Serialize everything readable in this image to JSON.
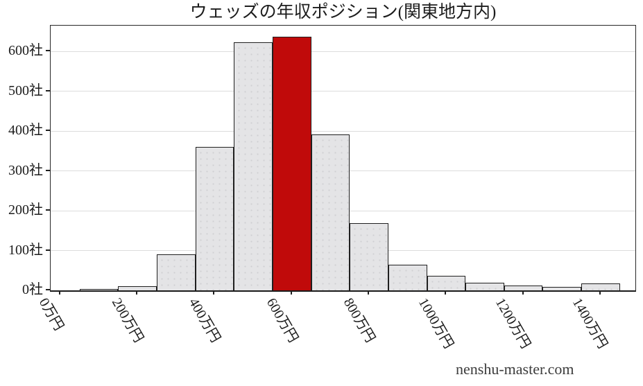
{
  "header": {
    "title": "ウェッズの年収ポジション(関東地方内)"
  },
  "footer": {
    "watermark": "nenshu-master.com"
  },
  "chart_data": {
    "type": "bar",
    "title": "ウェッズの年収ポジション(関東地方内)",
    "xlabel": "",
    "ylabel": "",
    "unit_x": "万円",
    "unit_y": "社",
    "bin_width": 100,
    "bin_centers": [
      100,
      200,
      300,
      400,
      500,
      600,
      700,
      800,
      900,
      1000,
      1100,
      1200,
      1300,
      1400
    ],
    "values": [
      3,
      11,
      91,
      360,
      623,
      638,
      391,
      168,
      65,
      36,
      19,
      12,
      9,
      18
    ],
    "highlight_index": 5,
    "highlight_bin_label": "600万円",
    "x_ticks": [
      {
        "value": 0,
        "label": "0万円"
      },
      {
        "value": 200,
        "label": "200万円"
      },
      {
        "value": 400,
        "label": "400万円"
      },
      {
        "value": 600,
        "label": "600万円"
      },
      {
        "value": 800,
        "label": "800万円"
      },
      {
        "value": 1000,
        "label": "1000万円"
      },
      {
        "value": 1200,
        "label": "1200万円"
      },
      {
        "value": 1400,
        "label": "1400万円"
      }
    ],
    "y_ticks": [
      {
        "value": 0,
        "label": "0社"
      },
      {
        "value": 100,
        "label": "100社"
      },
      {
        "value": 200,
        "label": "200社"
      },
      {
        "value": 300,
        "label": "300社"
      },
      {
        "value": 400,
        "label": "400社"
      },
      {
        "value": 500,
        "label": "500社"
      },
      {
        "value": 600,
        "label": "600社"
      }
    ],
    "xlim": [
      -25,
      1490
    ],
    "ylim": [
      0,
      665
    ],
    "grid": true,
    "legend": "none",
    "colors": {
      "bar_fill": "#e4e4e6",
      "bar_dot": "#cfcfd3",
      "bar_border": "#1f1f1f",
      "highlight_fill": "#c00a0a",
      "grid_line": "#dcdcdc",
      "axis": "#262626",
      "text": "#1c1c1c",
      "watermark_text": "#3c3c3c"
    }
  }
}
